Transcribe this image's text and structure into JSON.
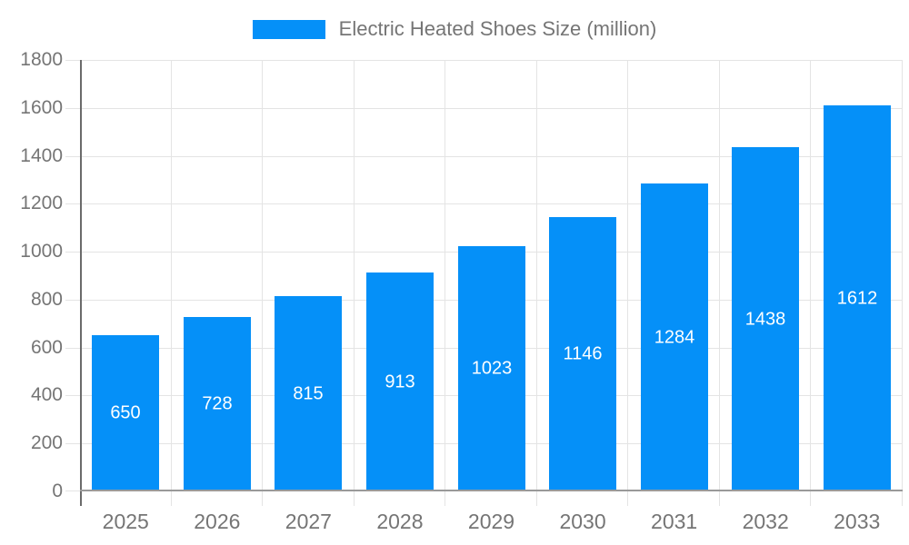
{
  "legend": {
    "label": "Electric Heated Shoes Size (million)"
  },
  "chart_data": {
    "type": "bar",
    "title": "Electric Heated Shoes Size (million)",
    "categories": [
      "2025",
      "2026",
      "2027",
      "2028",
      "2029",
      "2030",
      "2031",
      "2032",
      "2033"
    ],
    "values": [
      650,
      728,
      815,
      913,
      1023,
      1146,
      1284,
      1438,
      1612
    ],
    "xlabel": "",
    "ylabel": "",
    "ylim": [
      0,
      1800
    ],
    "ytick_step": 200,
    "ytick_labels": [
      "0",
      "200",
      "400",
      "600",
      "800",
      "1000",
      "1200",
      "1400",
      "1600",
      "1800"
    ],
    "grid": true,
    "legend_position": "top",
    "value_labels_shown": true,
    "colors": {
      "bar": "#0590f8",
      "gridline": "#e4e4e4",
      "y_axis_line": "#6b6b6b",
      "x_axis_line": "#9a9a9a",
      "axis_text": "#757575",
      "value_label_text": "#ffffff",
      "background": "#ffffff"
    }
  }
}
